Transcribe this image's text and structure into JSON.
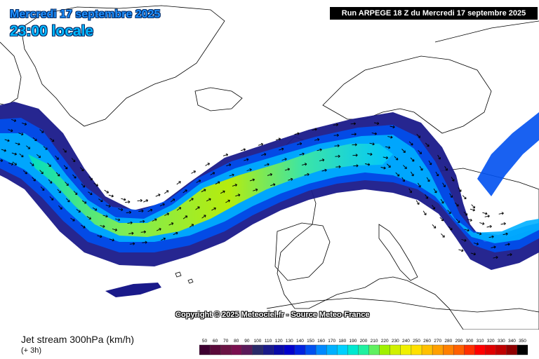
{
  "header": {
    "date": "Mercredi 17 septembre 2025",
    "time": "23:00 locale",
    "run": "Run ARPEGE 18 Z du Mercredi 17 septembre 2025"
  },
  "footer": {
    "copyright": "Copyright © 2025 Meteociel.fr - Source Meteo-France",
    "parameter": "Jet stream 300hPa (km/h)",
    "step": "(+ 3h)"
  },
  "legend": {
    "values": [
      "50",
      "60",
      "70",
      "80",
      "90",
      "100",
      "110",
      "120",
      "130",
      "140",
      "150",
      "160",
      "170",
      "180",
      "190",
      "200",
      "210",
      "220",
      "230",
      "240",
      "250",
      "260",
      "270",
      "280",
      "290",
      "300",
      "310",
      "320",
      "330",
      "340",
      "350"
    ],
    "colors": [
      "#3d0030",
      "#5a0a3a",
      "#6b1445",
      "#7a1050",
      "#5a1a5a",
      "#2a2a6a",
      "#1a1a8a",
      "#0a0aa8",
      "#0000cc",
      "#0022e0",
      "#0050f0",
      "#0088ff",
      "#00b0ff",
      "#00d0ff",
      "#00e8d0",
      "#20f0a0",
      "#60f060",
      "#a0f000",
      "#d0f000",
      "#f0f000",
      "#ffe000",
      "#ffc000",
      "#ffa000",
      "#ff8000",
      "#ff6000",
      "#ff3000",
      "#ff0000",
      "#e00000",
      "#c00000",
      "#900000",
      "#000000"
    ]
  },
  "map": {
    "ocean_color": "#ffffff",
    "land_color": "#ffffff",
    "border_color": "#000000",
    "wind_arrows": "black"
  }
}
